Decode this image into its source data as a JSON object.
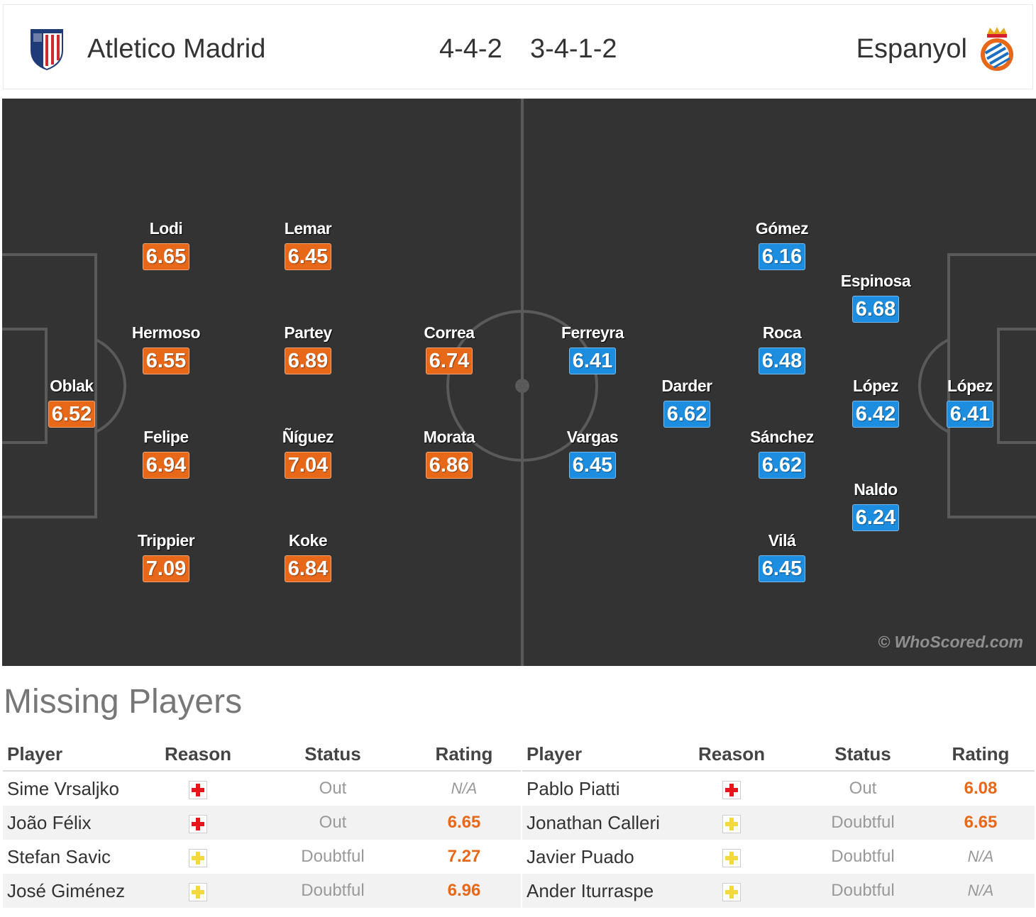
{
  "header": {
    "home_team": "Atletico Madrid",
    "away_team": "Espanyol",
    "home_formation": "4-4-2",
    "away_formation": "3-4-1-2"
  },
  "colors": {
    "home_rating": "#e8681a",
    "away_rating": "#1d8de0",
    "pitch": "#333333"
  },
  "home_players": [
    {
      "name": "Lodi",
      "rating": "6.65"
    },
    {
      "name": "Lemar",
      "rating": "6.45"
    },
    {
      "name": "Hermoso",
      "rating": "6.55"
    },
    {
      "name": "Partey",
      "rating": "6.89"
    },
    {
      "name": "Correa",
      "rating": "6.74"
    },
    {
      "name": "Oblak",
      "rating": "6.52"
    },
    {
      "name": "Felipe",
      "rating": "6.94"
    },
    {
      "name": "Ñíguez",
      "rating": "7.04"
    },
    {
      "name": "Morata",
      "rating": "6.86"
    },
    {
      "name": "Trippier",
      "rating": "7.09"
    },
    {
      "name": "Koke",
      "rating": "6.84"
    }
  ],
  "away_players": [
    {
      "name": "Gómez",
      "rating": "6.16"
    },
    {
      "name": "Espinosa",
      "rating": "6.68"
    },
    {
      "name": "Ferreyra",
      "rating": "6.41"
    },
    {
      "name": "Roca",
      "rating": "6.48"
    },
    {
      "name": "Darder",
      "rating": "6.62"
    },
    {
      "name": "López",
      "rating": "6.42"
    },
    {
      "name": "López",
      "rating": "6.41"
    },
    {
      "name": "Vargas",
      "rating": "6.45"
    },
    {
      "name": "Sánchez",
      "rating": "6.62"
    },
    {
      "name": "Naldo",
      "rating": "6.24"
    },
    {
      "name": "Vilá",
      "rating": "6.45"
    }
  ],
  "watermark": "© WhoScored.com",
  "missing": {
    "title": "Missing Players",
    "columns": [
      "Player",
      "Reason",
      "Status",
      "Rating"
    ],
    "home": [
      {
        "player": "Sime Vrsaljko",
        "reason_icon": "injury-icon",
        "status": "Out",
        "rating": "N/A"
      },
      {
        "player": "João Félix",
        "reason_icon": "injury-icon",
        "status": "Out",
        "rating": "6.65"
      },
      {
        "player": "Stefan Savic",
        "reason_icon": "doubtful-icon",
        "status": "Doubtful",
        "rating": "7.27"
      },
      {
        "player": "José Giménez",
        "reason_icon": "doubtful-icon",
        "status": "Doubtful",
        "rating": "6.96"
      }
    ],
    "away": [
      {
        "player": "Pablo Piatti",
        "reason_icon": "injury-icon",
        "status": "Out",
        "rating": "6.08"
      },
      {
        "player": "Jonathan Calleri",
        "reason_icon": "doubtful-icon",
        "status": "Doubtful",
        "rating": "6.65"
      },
      {
        "player": "Javier Puado",
        "reason_icon": "doubtful-icon",
        "status": "Doubtful",
        "rating": "N/A"
      },
      {
        "player": "Ander Iturraspe",
        "reason_icon": "doubtful-icon",
        "status": "Doubtful",
        "rating": "N/A"
      }
    ]
  }
}
